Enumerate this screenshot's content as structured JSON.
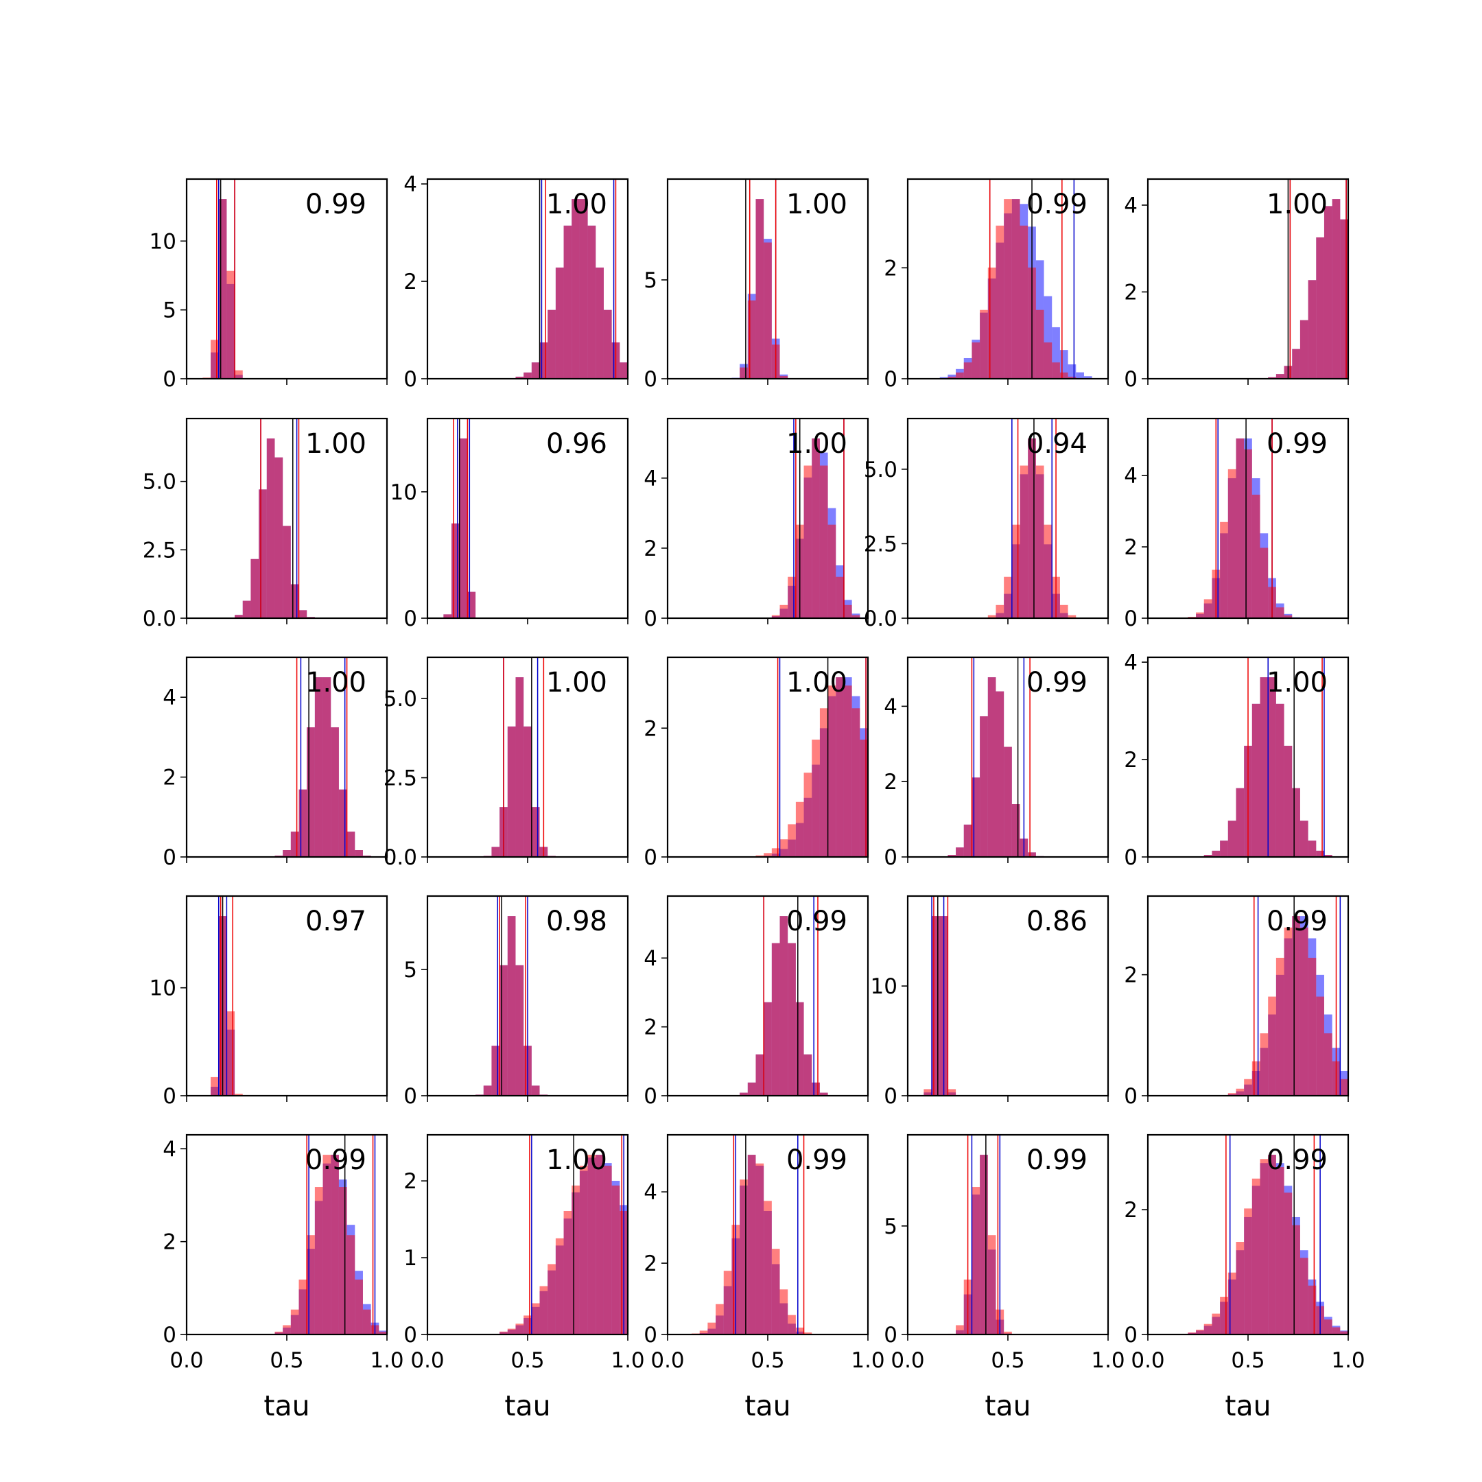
{
  "chart_data": {
    "type": "histogram-grid",
    "rows": 5,
    "cols": 5,
    "xlabel": "tau",
    "xlim": [
      0,
      1
    ],
    "xticks": [
      0.0,
      0.5,
      1.0
    ],
    "xtick_labels": [
      "0.0",
      "0.5",
      "1.0"
    ],
    "colors": {
      "blue_hist": "#0000ff",
      "red_hist": "#ff0000",
      "overlap": "#c0336f",
      "median_line": "#000000",
      "blue_line": "#0000cc",
      "red_line": "#ee0000"
    },
    "hist_alpha": 0.5,
    "panels": [
      {
        "label": "0.99",
        "ylim": [
          0,
          14.5
        ],
        "yticks": [
          0,
          5,
          10
        ],
        "ytick_labels": [
          "0",
          "5",
          "10"
        ],
        "blue": {
          "mean": 0.19,
          "sd": 0.025
        },
        "red": {
          "mean": 0.19,
          "sd": 0.028
        },
        "blue_lines": [
          0.16,
          0.24
        ],
        "red_lines": [
          0.15,
          0.24
        ],
        "median": 0.17
      },
      {
        "label": "1.00",
        "ylim": [
          0,
          4.1
        ],
        "yticks": [
          0,
          2,
          4
        ],
        "ytick_labels": [
          "0",
          "2",
          "4"
        ],
        "blue": {
          "mean": 0.76,
          "sd": 0.1
        },
        "red": {
          "mean": 0.76,
          "sd": 0.1
        },
        "blue_lines": [
          0.57,
          0.93
        ],
        "red_lines": [
          0.59,
          0.94
        ],
        "median": 0.56
      },
      {
        "label": "1.00",
        "ylim": [
          0,
          10.1
        ],
        "yticks": [
          0,
          5
        ],
        "ytick_labels": [
          "0",
          "5"
        ],
        "blue": {
          "mean": 0.47,
          "sd": 0.04
        },
        "red": {
          "mean": 0.47,
          "sd": 0.038
        },
        "blue_lines": [
          0.41,
          0.54
        ],
        "red_lines": [
          0.41,
          0.54
        ],
        "median": 0.39
      },
      {
        "label": "0.99",
        "ylim": [
          0,
          3.6
        ],
        "yticks": [
          0,
          2
        ],
        "ytick_labels": [
          "0",
          "2"
        ],
        "blue": {
          "mean": 0.55,
          "sd": 0.12
        },
        "red": {
          "mean": 0.52,
          "sd": 0.1
        },
        "blue_lines": [
          0.41,
          0.83
        ],
        "red_lines": [
          0.41,
          0.77
        ],
        "median": 0.62
      },
      {
        "label": "1.00",
        "ylim": [
          0,
          4.6
        ],
        "yticks": [
          0,
          2,
          4
        ],
        "ytick_labels": [
          "0",
          "2",
          "4"
        ],
        "blue": {
          "mean": 0.93,
          "sd": 0.1
        },
        "red": {
          "mean": 0.93,
          "sd": 0.1
        },
        "blue_lines": [
          0.71,
          0.99
        ],
        "red_lines": [
          0.71,
          0.99
        ],
        "median": 0.7
      },
      {
        "label": "1.00",
        "ylim": [
          0,
          7.3
        ],
        "yticks": [
          0,
          2.5,
          5
        ],
        "ytick_labels": [
          "0.0",
          "2.5",
          "5.0"
        ],
        "blue": {
          "mean": 0.43,
          "sd": 0.06
        },
        "red": {
          "mean": 0.43,
          "sd": 0.06
        },
        "blue_lines": [
          0.37,
          0.55
        ],
        "red_lines": [
          0.37,
          0.56
        ],
        "median": 0.53
      },
      {
        "label": "0.96",
        "ylim": [
          0,
          15.8
        ],
        "yticks": [
          0,
          10
        ],
        "ytick_labels": [
          "0",
          "10"
        ],
        "blue": {
          "mean": 0.17,
          "sd": 0.025
        },
        "red": {
          "mean": 0.17,
          "sd": 0.025
        },
        "blue_lines": [
          0.15,
          0.21
        ],
        "red_lines": [
          0.13,
          0.2
        ],
        "median": 0.16
      },
      {
        "label": "1.00",
        "ylim": [
          0,
          5.7
        ],
        "yticks": [
          0,
          2,
          4
        ],
        "ytick_labels": [
          "0",
          "2",
          "4"
        ],
        "blue": {
          "mean": 0.75,
          "sd": 0.07
        },
        "red": {
          "mean": 0.74,
          "sd": 0.07
        },
        "blue_lines": [
          0.63,
          0.88
        ],
        "red_lines": [
          0.64,
          0.88
        ],
        "median": 0.66
      },
      {
        "label": "0.94",
        "ylim": [
          0,
          6.7
        ],
        "yticks": [
          0,
          2.5,
          5
        ],
        "ytick_labels": [
          "0.0",
          "2.5",
          "5.0"
        ],
        "blue": {
          "mean": 0.62,
          "sd": 0.06
        },
        "red": {
          "mean": 0.62,
          "sd": 0.07
        },
        "blue_lines": [
          0.52,
          0.72
        ],
        "red_lines": [
          0.55,
          0.74
        ],
        "median": 0.63
      },
      {
        "label": "0.99",
        "ylim": [
          0,
          5.6
        ],
        "yticks": [
          0,
          2,
          4
        ],
        "ytick_labels": [
          "0",
          "2",
          "4"
        ],
        "blue": {
          "mean": 0.48,
          "sd": 0.08
        },
        "red": {
          "mean": 0.47,
          "sd": 0.08
        },
        "blue_lines": [
          0.35,
          0.62
        ],
        "red_lines": [
          0.34,
          0.62
        ],
        "median": 0.49
      },
      {
        "label": "1.00",
        "ylim": [
          0,
          5.0
        ],
        "yticks": [
          0,
          2,
          4
        ],
        "ytick_labels": [
          "0",
          "2",
          "4"
        ],
        "blue": {
          "mean": 0.68,
          "sd": 0.07
        },
        "red": {
          "mean": 0.68,
          "sd": 0.07
        },
        "blue_lines": [
          0.57,
          0.79
        ],
        "red_lines": [
          0.55,
          0.8
        ],
        "median": 0.61
      },
      {
        "label": "1.00",
        "ylim": [
          0,
          6.3
        ],
        "yticks": [
          0,
          2.5,
          5
        ],
        "ytick_labels": [
          "0.0",
          "2.5",
          "5.0"
        ],
        "blue": {
          "mean": 0.46,
          "sd": 0.05
        },
        "red": {
          "mean": 0.46,
          "sd": 0.05
        },
        "blue_lines": [
          0.38,
          0.55
        ],
        "red_lines": [
          0.38,
          0.58
        ],
        "median": 0.52
      },
      {
        "label": "1.00",
        "ylim": [
          0,
          3.1
        ],
        "yticks": [
          0,
          2
        ],
        "ytick_labels": [
          "0",
          "2"
        ],
        "blue": {
          "mean": 0.88,
          "sd": 0.12
        },
        "red": {
          "mean": 0.86,
          "sd": 0.13
        },
        "blue_lines": [
          0.56,
          0.99
        ],
        "red_lines": [
          0.55,
          0.99
        ],
        "median": 0.8
      },
      {
        "label": "0.99",
        "ylim": [
          0,
          5.3
        ],
        "yticks": [
          0,
          2,
          4
        ],
        "ytick_labels": [
          "0",
          "2",
          "4"
        ],
        "blue": {
          "mean": 0.43,
          "sd": 0.07
        },
        "red": {
          "mean": 0.43,
          "sd": 0.07
        },
        "blue_lines": [
          0.33,
          0.58
        ],
        "red_lines": [
          0.32,
          0.61
        ],
        "median": 0.55
      },
      {
        "label": "1.00",
        "ylim": [
          0,
          4.1
        ],
        "yticks": [
          0,
          2,
          4
        ],
        "ytick_labels": [
          "0",
          "2",
          "4"
        ],
        "blue": {
          "mean": 0.6,
          "sd": 0.1
        },
        "red": {
          "mean": 0.6,
          "sd": 0.1
        },
        "blue_lines": [
          0.6,
          0.88
        ],
        "red_lines": [
          0.5,
          0.87
        ],
        "median": 0.73
      },
      {
        "label": "0.97",
        "ylim": [
          0,
          18.5
        ],
        "yticks": [
          0,
          10
        ],
        "ytick_labels": [
          "0",
          "10"
        ],
        "blue": {
          "mean": 0.19,
          "sd": 0.02
        },
        "red": {
          "mean": 0.19,
          "sd": 0.023
        },
        "blue_lines": [
          0.16,
          0.2
        ],
        "red_lines": [
          0.17,
          0.23
        ],
        "median": 0.18
      },
      {
        "label": "0.98",
        "ylim": [
          0,
          7.9
        ],
        "yticks": [
          0,
          5
        ],
        "ytick_labels": [
          "0",
          "5"
        ],
        "blue": {
          "mean": 0.42,
          "sd": 0.05
        },
        "red": {
          "mean": 0.42,
          "sd": 0.05
        },
        "blue_lines": [
          0.35,
          0.5
        ],
        "red_lines": [
          0.36,
          0.49
        ],
        "median": 0.37
      },
      {
        "label": "0.99",
        "ylim": [
          0,
          5.8
        ],
        "yticks": [
          0,
          2,
          4
        ],
        "ytick_labels": [
          "0",
          "2",
          "4"
        ],
        "blue": {
          "mean": 0.58,
          "sd": 0.07
        },
        "red": {
          "mean": 0.58,
          "sd": 0.07
        },
        "blue_lines": [
          0.48,
          0.73
        ],
        "red_lines": [
          0.48,
          0.75
        ],
        "median": 0.65
      },
      {
        "label": "0.86",
        "ylim": [
          0,
          18.2
        ],
        "yticks": [
          0,
          10
        ],
        "ytick_labels": [
          "0",
          "10"
        ],
        "blue": {
          "mean": 0.16,
          "sd": 0.02
        },
        "red": {
          "mean": 0.16,
          "sd": 0.022
        },
        "blue_lines": [
          0.12,
          0.18
        ],
        "red_lines": [
          0.13,
          0.2
        ],
        "median": 0.15
      },
      {
        "label": "0.99",
        "ylim": [
          0,
          3.3
        ],
        "yticks": [
          0,
          2
        ],
        "ytick_labels": [
          "0",
          "2"
        ],
        "blue": {
          "mean": 0.76,
          "sd": 0.11
        },
        "red": {
          "mean": 0.74,
          "sd": 0.11
        },
        "blue_lines": [
          0.55,
          0.96
        ],
        "red_lines": [
          0.53,
          0.94
        ],
        "median": 0.73
      },
      {
        "label": "0.99",
        "ylim": [
          0,
          4.3
        ],
        "yticks": [
          0,
          2,
          4
        ],
        "ytick_labels": [
          "0",
          "2",
          "4"
        ],
        "blue": {
          "mean": 0.73,
          "sd": 0.09
        },
        "red": {
          "mean": 0.72,
          "sd": 0.09
        },
        "blue_lines": [
          0.61,
          0.94
        ],
        "red_lines": [
          0.6,
          0.93
        ],
        "median": 0.79
      },
      {
        "label": "1.00",
        "ylim": [
          0,
          2.6
        ],
        "yticks": [
          0,
          1,
          2
        ],
        "ytick_labels": [
          "0",
          "1",
          "2"
        ],
        "blue": {
          "mean": 0.85,
          "sd": 0.16
        },
        "red": {
          "mean": 0.84,
          "sd": 0.16
        },
        "blue_lines": [
          0.52,
          0.98
        ],
        "red_lines": [
          0.51,
          0.97
        ],
        "median": 0.73
      },
      {
        "label": "0.99",
        "ylim": [
          0,
          5.6
        ],
        "yticks": [
          0,
          2,
          4
        ],
        "ytick_labels": [
          "0",
          "2",
          "4"
        ],
        "blue": {
          "mean": 0.43,
          "sd": 0.08
        },
        "red": {
          "mean": 0.43,
          "sd": 0.09
        },
        "blue_lines": [
          0.34,
          0.65
        ],
        "red_lines": [
          0.33,
          0.68
        ],
        "median": 0.39
      },
      {
        "label": "0.99",
        "ylim": [
          0,
          9.2
        ],
        "yticks": [
          0,
          5
        ],
        "ytick_labels": [
          "0",
          "5"
        ],
        "blue": {
          "mean": 0.37,
          "sd": 0.04
        },
        "red": {
          "mean": 0.37,
          "sd": 0.045
        },
        "blue_lines": [
          0.32,
          0.46
        ],
        "red_lines": [
          0.3,
          0.45
        ],
        "median": 0.39
      },
      {
        "label": "0.99",
        "ylim": [
          0,
          3.2
        ],
        "yticks": [
          0,
          2
        ],
        "ytick_labels": [
          "0",
          "2"
        ],
        "blue": {
          "mean": 0.62,
          "sd": 0.13
        },
        "red": {
          "mean": 0.61,
          "sd": 0.13
        },
        "blue_lines": [
          0.41,
          0.86
        ],
        "red_lines": [
          0.39,
          0.83
        ],
        "median": 0.73
      }
    ]
  }
}
